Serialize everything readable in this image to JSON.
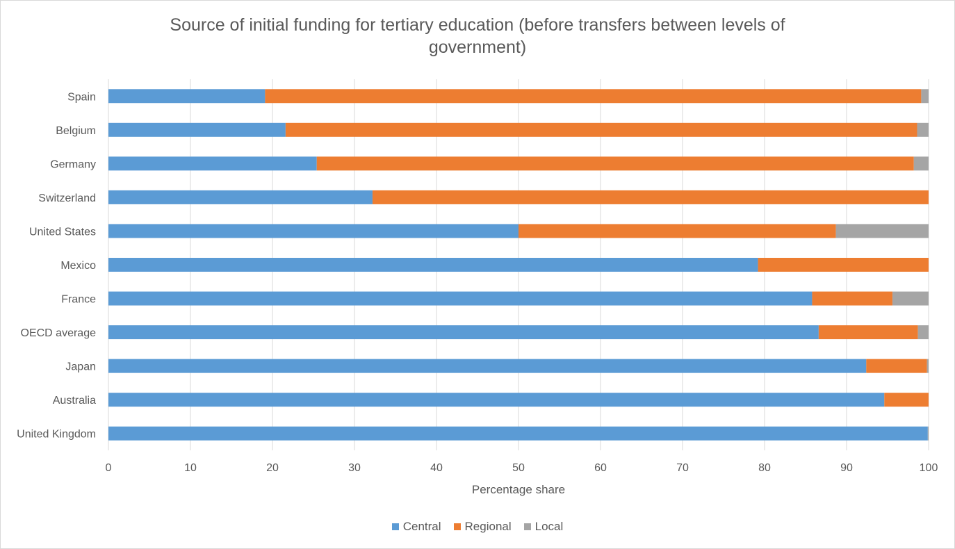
{
  "chart_data": {
    "type": "bar",
    "orientation": "horizontal",
    "stacked": true,
    "title": "Source of initial funding for tertiary education (before transfers between levels of government)",
    "title_lines": [
      "Source of initial funding for tertiary education (before transfers between levels of",
      "government)"
    ],
    "xlabel": "Percentage share",
    "ylabel": "",
    "xlim": [
      0,
      100
    ],
    "xticks": [
      0,
      10,
      20,
      30,
      40,
      50,
      60,
      70,
      80,
      90,
      100
    ],
    "grid": true,
    "legend_position": "bottom",
    "categories": [
      "Spain",
      "Belgium",
      "Germany",
      "Switzerland",
      "United States",
      "Mexico",
      "France",
      "OECD average",
      "Japan",
      "Australia",
      "United Kingdom"
    ],
    "series": [
      {
        "name": "Central",
        "color": "#5b9bd5",
        "values": [
          19.1,
          21.6,
          25.4,
          32.2,
          50.0,
          79.2,
          85.8,
          86.6,
          92.4,
          94.6,
          99.9
        ]
      },
      {
        "name": "Regional",
        "color": "#ed7d31",
        "values": [
          80.0,
          77.0,
          72.8,
          67.8,
          38.7,
          20.8,
          9.8,
          12.1,
          7.4,
          5.4,
          0.0
        ]
      },
      {
        "name": "Local",
        "color": "#a5a5a5",
        "values": [
          0.9,
          1.4,
          1.8,
          0.0,
          11.3,
          0.0,
          4.4,
          1.3,
          0.2,
          0.0,
          0.1
        ]
      }
    ]
  }
}
